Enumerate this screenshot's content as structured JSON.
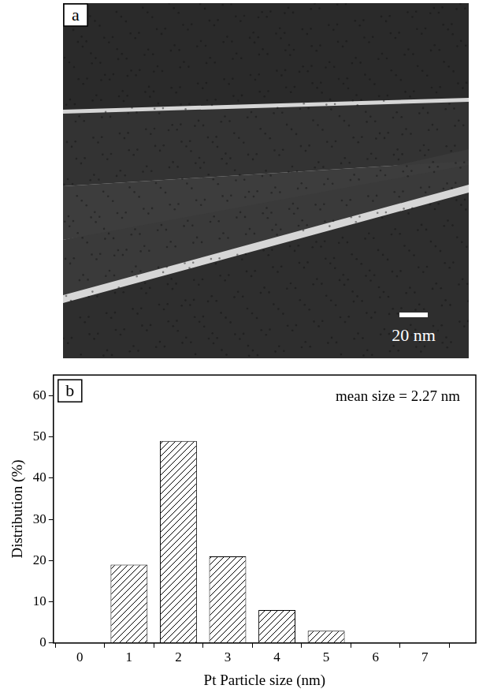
{
  "image_panel": {
    "label": "a",
    "scale_bar": "20 nm"
  },
  "chart_data": {
    "type": "bar",
    "panel_label": "b",
    "annotations": [
      "mean size = 2.27 nm"
    ],
    "x_label": "Pt Particle size (nm)",
    "y_label": "Distribution (%)",
    "x": [
      1,
      2,
      3,
      4,
      5
    ],
    "values": [
      19,
      49,
      21,
      8,
      3
    ],
    "color": "#000000",
    "xlim": [
      0,
      7.5
    ],
    "xticks": [
      0,
      1,
      2,
      3,
      4,
      5,
      6,
      7
    ],
    "ylim": [
      0,
      65
    ],
    "yticks": [
      0,
      10,
      20,
      30,
      40,
      50,
      60
    ],
    "grid": false
  }
}
